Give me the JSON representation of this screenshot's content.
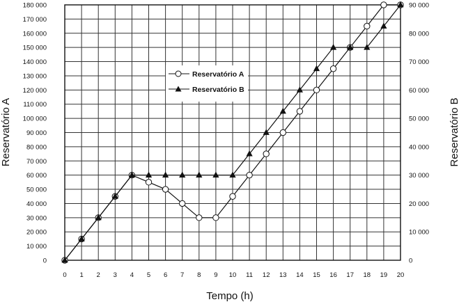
{
  "chart_data": {
    "type": "line",
    "xlabel": "Tempo (h)",
    "ylabel_left": "Reservatório A",
    "ylabel_right": "Reservatório B",
    "x": [
      0,
      1,
      2,
      3,
      4,
      5,
      6,
      7,
      8,
      9,
      10,
      11,
      12,
      13,
      14,
      15,
      16,
      17,
      18,
      19,
      20
    ],
    "xlim": [
      0,
      20
    ],
    "ylim_left": [
      0,
      180000
    ],
    "ylim_right": [
      0,
      90000
    ],
    "y_left_ticks": [
      0,
      10000,
      20000,
      30000,
      40000,
      50000,
      60000,
      70000,
      80000,
      90000,
      100000,
      110000,
      120000,
      130000,
      140000,
      150000,
      160000,
      170000,
      180000
    ],
    "y_left_tick_labels": [
      "0",
      "10 000",
      "20 000",
      "30 000",
      "40 000",
      "50 000",
      "60 000",
      "70 000",
      "80 000",
      "90 000",
      "100 000",
      "110 000",
      "120 000",
      "130 000",
      "140 000",
      "150 000",
      "160 000",
      "170 000",
      "180 000"
    ],
    "y_right_ticks": [
      0,
      10000,
      20000,
      30000,
      40000,
      50000,
      60000,
      70000,
      80000,
      90000
    ],
    "y_right_tick_labels": [
      "0",
      "10 000",
      "20 000",
      "30 000",
      "40 000",
      "50 000",
      "60 000",
      "70 000",
      "80 000",
      "90 000"
    ],
    "x_tick_labels": [
      "0",
      "1",
      "2",
      "3",
      "4",
      "5",
      "6",
      "7",
      "8",
      "9",
      "10",
      "11",
      "12",
      "13",
      "14",
      "15",
      "16",
      "17",
      "18",
      "19",
      "20"
    ],
    "grid": true,
    "legend_position": "upper-center",
    "series": [
      {
        "name": "Reservatório A",
        "axis": "left",
        "marker": "open-circle",
        "x": [
          0,
          1,
          2,
          3,
          4,
          5,
          6,
          7,
          8,
          9,
          10,
          11,
          12,
          13,
          14,
          15,
          16,
          17,
          18,
          19,
          20
        ],
        "values": [
          0,
          15000,
          30000,
          45000,
          60000,
          55000,
          50000,
          40000,
          30000,
          30000,
          45000,
          60000,
          75000,
          90000,
          105000,
          120000,
          135000,
          150000,
          165000,
          180000,
          180000
        ]
      },
      {
        "name": "Reservatório B",
        "axis": "right",
        "marker": "filled-triangle",
        "x": [
          0,
          1,
          2,
          3,
          4,
          5,
          6,
          7,
          8,
          9,
          10,
          11,
          12,
          13,
          14,
          15,
          16,
          17,
          18,
          19,
          20
        ],
        "values": [
          0,
          7500,
          15000,
          22500,
          30000,
          30000,
          30000,
          30000,
          30000,
          30000,
          30000,
          37500,
          45000,
          52500,
          60000,
          67500,
          75000,
          75000,
          75000,
          82500,
          90000
        ]
      }
    ]
  }
}
